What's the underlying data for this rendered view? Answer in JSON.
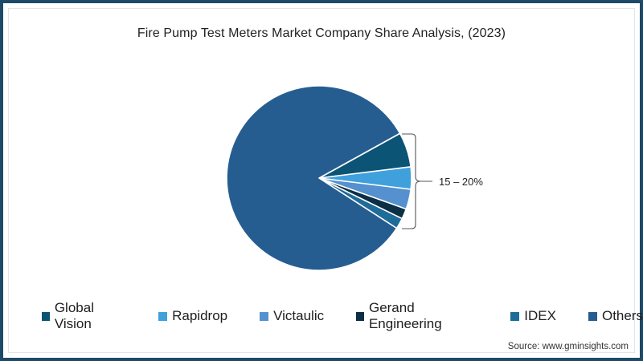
{
  "title": "Fire Pump Test Meters Market Company Share Analysis, (2023)",
  "annotation": "15 – 20%",
  "source": "Source: www.gminsights.com",
  "legend": [
    {
      "label": "Global Vision",
      "color": "#0c5476"
    },
    {
      "label": "Rapidrop",
      "color": "#3fa0dc"
    },
    {
      "label": "Victaulic",
      "color": "#5591cf"
    },
    {
      "label": "Gerand Engineering",
      "color": "#0c2f45"
    },
    {
      "label": "IDEX",
      "color": "#1e6c9a"
    },
    {
      "label": "Others",
      "color": "#255d91"
    }
  ],
  "chart_data": {
    "type": "pie",
    "title": "Fire Pump Test Meters Market Company Share Analysis, (2023)",
    "categories": [
      "Global Vision",
      "Rapidrop",
      "Victaulic",
      "Gerand Engineering",
      "IDEX",
      "Others"
    ],
    "values": [
      6.1,
      3.9,
      3.5,
      1.8,
      1.9,
      82.8
    ],
    "colors": [
      "#0c5476",
      "#3fa0dc",
      "#5591cf",
      "#0c2f45",
      "#1e6c9a",
      "#255d91"
    ],
    "annotations": [
      {
        "text": "15 – 20%",
        "applies_to": [
          "Global Vision",
          "Rapidrop",
          "Victaulic",
          "Gerand Engineering",
          "IDEX"
        ]
      }
    ],
    "legend_position": "bottom",
    "source": "Source: www.gminsights.com"
  }
}
